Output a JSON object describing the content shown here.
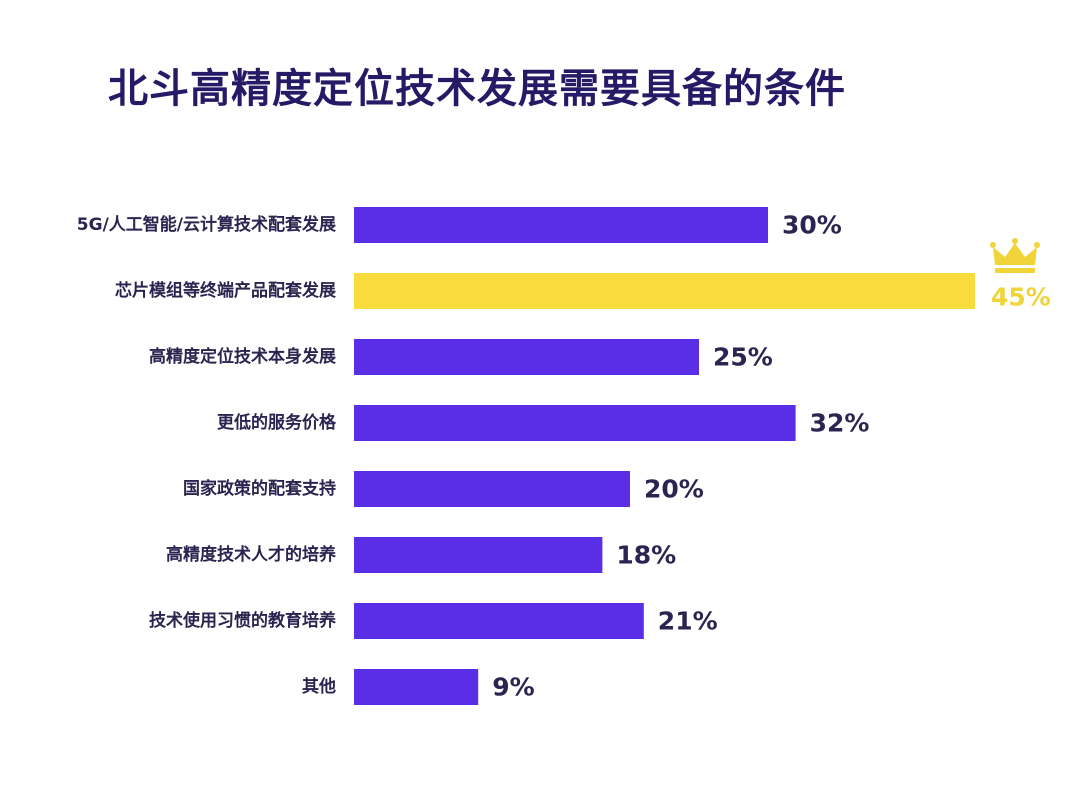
{
  "chart_data": {
    "type": "bar",
    "orientation": "horizontal",
    "title": "北斗高精度定位技术发展需要具备的条件",
    "categories": [
      "5G/人工智能/云计算技术配套发展",
      "芯片模组等终端产品配套发展",
      "高精度定位技术本身发展",
      "更低的服务价格",
      "国家政策的配套支持",
      "高精度技术人才的培养",
      "技术使用习惯的教育培养",
      "其他"
    ],
    "values": [
      30,
      45,
      25,
      32,
      20,
      18,
      21,
      9
    ],
    "value_labels": [
      "30%",
      "45%",
      "25%",
      "32%",
      "20%",
      "18%",
      "21%",
      "9%"
    ],
    "unit": "%",
    "highlight_index": 1,
    "highlight_icon": "crown-icon",
    "xlim": [
      0,
      45
    ],
    "grid": false,
    "legend": "none",
    "colors": {
      "bar": "#5a2ee6",
      "highlight": "#f7dc3b",
      "value_text": "#2a2550",
      "highlight_text": "#f0d43a",
      "title": "#241a66"
    }
  }
}
